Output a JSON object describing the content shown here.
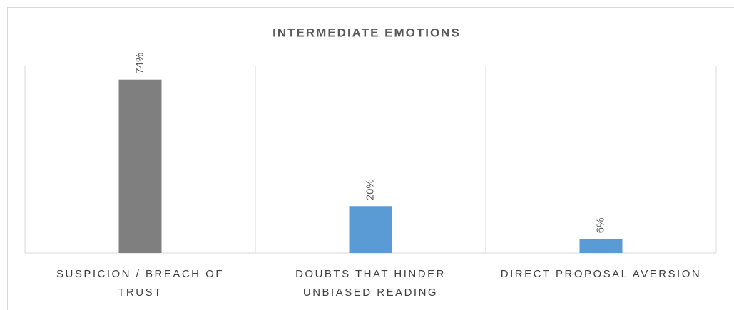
{
  "chart_data": {
    "type": "bar",
    "title": "INTERMEDIATE EMOTIONS",
    "categories": [
      "SUSPICION / BREACH OF TRUST",
      "DOUBTS THAT HINDER UNBIASED READING",
      "DIRECT PROPOSAL AVERSION"
    ],
    "values": [
      74,
      20,
      6
    ],
    "value_labels": [
      "74%",
      "20%",
      "6%"
    ],
    "colors": [
      "#7f7f7f",
      "#5b9bd5",
      "#5b9bd5"
    ],
    "ylim": [
      0,
      80
    ]
  }
}
